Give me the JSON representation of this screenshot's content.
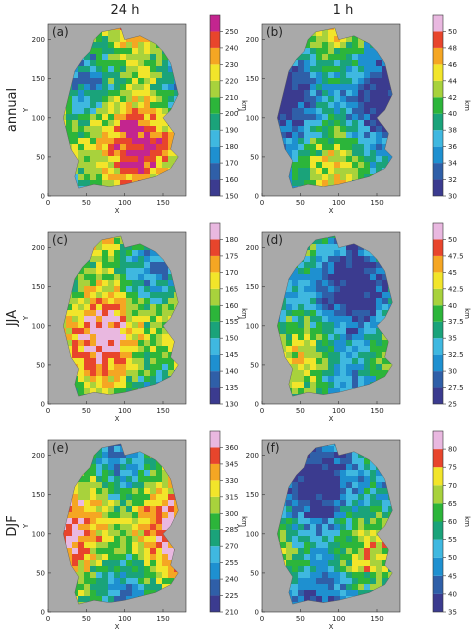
{
  "figure": {
    "column_titles": [
      "24 h",
      "1 h"
    ],
    "row_labels": [
      "annual",
      "JJA",
      "DJF"
    ]
  },
  "chart_data": [
    {
      "type": "map",
      "label": "(a)",
      "xlabel": "X",
      "ylabel": "Y",
      "xlim": [
        0,
        180
      ],
      "ylim": [
        0,
        220
      ],
      "xticks": [
        0,
        50,
        100,
        150
      ],
      "yticks": [
        0,
        50,
        100,
        150,
        200
      ],
      "colorbar": {
        "label": "km",
        "lim": [
          150,
          260
        ],
        "ticks": [
          150,
          160,
          170,
          180,
          190,
          200,
          210,
          220,
          230,
          240,
          250
        ],
        "colors": [
          "#3b3b8f",
          "#2f5fa8",
          "#1e90d0",
          "#3fb8e0",
          "#1aa37a",
          "#2cb53a",
          "#a8d23c",
          "#f2e52a",
          "#f5a623",
          "#e8452c",
          "#c3258f"
        ]
      }
    },
    {
      "type": "map",
      "label": "(b)",
      "xlabel": "X",
      "ylabel": "Y",
      "xlim": [
        0,
        180
      ],
      "ylim": [
        0,
        220
      ],
      "xticks": [
        0,
        50,
        100,
        150
      ],
      "yticks": [
        0,
        50,
        100,
        150,
        200
      ],
      "colorbar": {
        "label": "km",
        "lim": [
          30,
          52
        ],
        "ticks": [
          30,
          32,
          34,
          36,
          38,
          40,
          42,
          44,
          46,
          48,
          50
        ],
        "colors": [
          "#3b3b8f",
          "#2f5fa8",
          "#1e90d0",
          "#3fb8e0",
          "#1aa37a",
          "#2cb53a",
          "#a8d23c",
          "#f2e52a",
          "#f5a623",
          "#e8452c",
          "#e9b8e0"
        ]
      }
    },
    {
      "type": "map",
      "label": "(c)",
      "xlabel": "X",
      "ylabel": "Y",
      "xlim": [
        0,
        180
      ],
      "ylim": [
        0,
        220
      ],
      "xticks": [
        0,
        50,
        100,
        150
      ],
      "yticks": [
        0,
        50,
        100,
        150,
        200
      ],
      "colorbar": {
        "label": "km",
        "lim": [
          130,
          185
        ],
        "ticks": [
          130,
          135,
          140,
          145,
          150,
          155,
          160,
          165,
          170,
          175,
          180
        ],
        "colors": [
          "#3b3b8f",
          "#2f5fa8",
          "#1e90d0",
          "#3fb8e0",
          "#1aa37a",
          "#2cb53a",
          "#a8d23c",
          "#f2e52a",
          "#f5a623",
          "#e8452c",
          "#e9b8e0"
        ]
      }
    },
    {
      "type": "map",
      "label": "(d)",
      "xlabel": "X",
      "ylabel": "Y",
      "xlim": [
        0,
        180
      ],
      "ylim": [
        0,
        220
      ],
      "xticks": [
        0,
        50,
        100,
        150
      ],
      "yticks": [
        0,
        50,
        100,
        150,
        200
      ],
      "colorbar": {
        "label": "km",
        "lim": [
          25,
          52.5
        ],
        "ticks": [
          25,
          27.5,
          30,
          32.5,
          35,
          37.5,
          40,
          42.5,
          45,
          47.5,
          50
        ],
        "colors": [
          "#3b3b8f",
          "#2f5fa8",
          "#1e90d0",
          "#3fb8e0",
          "#1aa37a",
          "#2cb53a",
          "#a8d23c",
          "#f2e52a",
          "#f5a623",
          "#e8452c",
          "#e9b8e0"
        ]
      }
    },
    {
      "type": "map",
      "label": "(e)",
      "xlabel": "X",
      "ylabel": "Y",
      "xlim": [
        0,
        180
      ],
      "ylim": [
        0,
        220
      ],
      "xticks": [
        0,
        50,
        100,
        150
      ],
      "yticks": [
        0,
        50,
        100,
        150,
        200
      ],
      "colorbar": {
        "label": "km",
        "lim": [
          210,
          375
        ],
        "ticks": [
          210,
          225,
          240,
          255,
          270,
          285,
          300,
          315,
          330,
          345,
          360
        ],
        "colors": [
          "#3b3b8f",
          "#2f5fa8",
          "#1e90d0",
          "#3fb8e0",
          "#1aa37a",
          "#2cb53a",
          "#a8d23c",
          "#f2e52a",
          "#f5a623",
          "#e8452c",
          "#e9b8e0"
        ]
      }
    },
    {
      "type": "map",
      "label": "(f)",
      "xlabel": "X",
      "ylabel": "Y",
      "xlim": [
        0,
        180
      ],
      "ylim": [
        0,
        220
      ],
      "xticks": [
        0,
        50,
        100,
        150
      ],
      "yticks": [
        0,
        50,
        100,
        150,
        200
      ],
      "colorbar": {
        "label": "km",
        "lim": [
          35,
          85
        ],
        "ticks": [
          35,
          40,
          45,
          50,
          55,
          60,
          65,
          70,
          75,
          80
        ],
        "colors": [
          "#3b3b8f",
          "#2f5fa8",
          "#1e90d0",
          "#3fb8e0",
          "#1aa37a",
          "#2cb53a",
          "#a8d23c",
          "#f2e52a",
          "#e8452c",
          "#e9b8e0"
        ]
      }
    }
  ]
}
